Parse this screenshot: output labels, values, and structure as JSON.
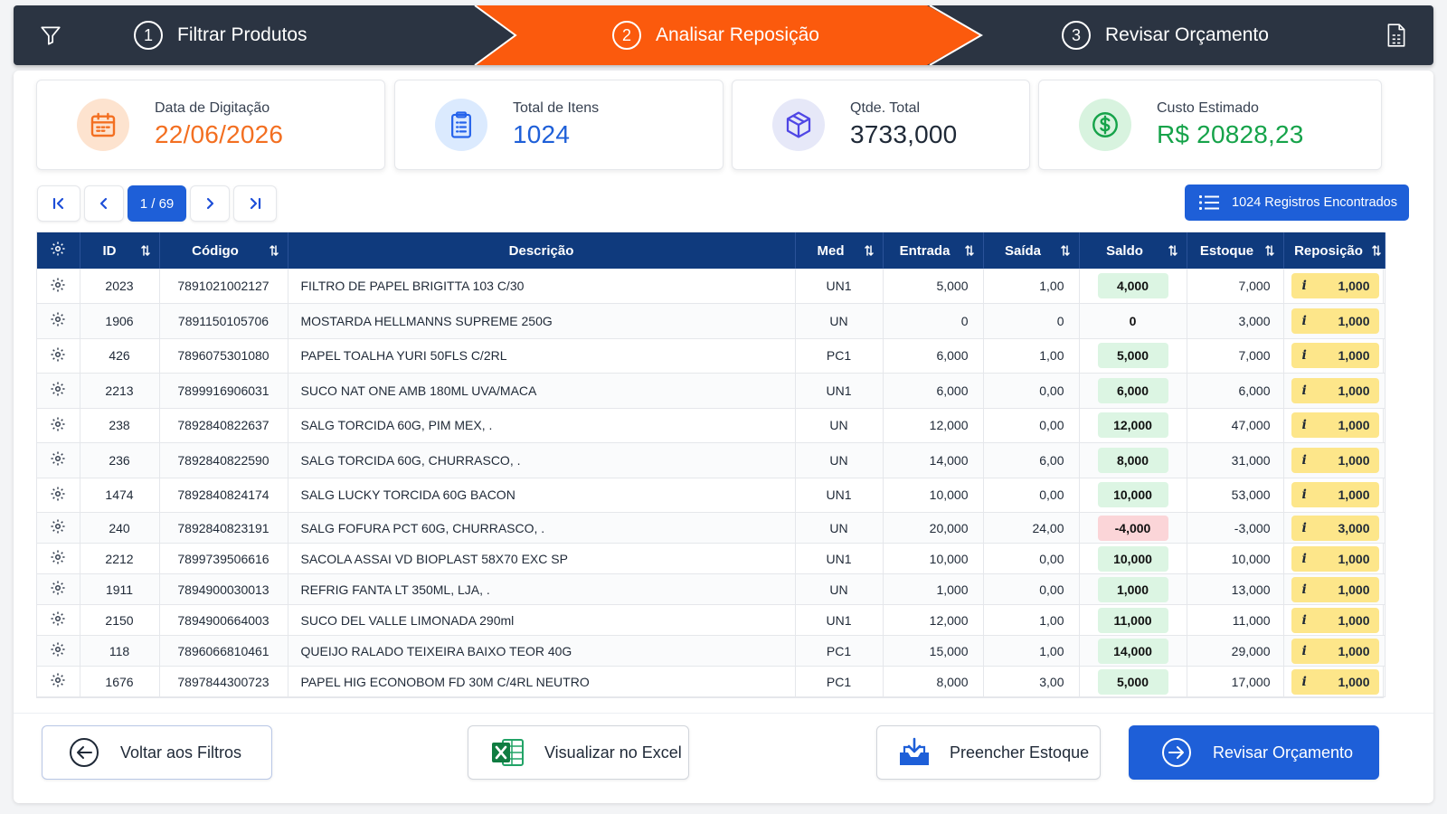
{
  "stepper": {
    "steps": [
      {
        "num": "1",
        "label": "Filtrar Produtos"
      },
      {
        "num": "2",
        "label": "Analisar Reposição"
      },
      {
        "num": "3",
        "label": "Revisar Orçamento"
      }
    ],
    "active_step": 2
  },
  "cards": {
    "date": {
      "label": "Data de Digitação",
      "value": "22/06/2026"
    },
    "items": {
      "label": "Total de Itens",
      "value": "1024"
    },
    "qty": {
      "label": "Qtde. Total",
      "value": "3733,000"
    },
    "cost": {
      "label": "Custo Estimado",
      "value": "R$ 20828,23"
    }
  },
  "pagination": {
    "current": "1 / 69"
  },
  "records_label": "1024 Registros Encontrados",
  "table": {
    "headers": {
      "id": "ID",
      "codigo": "Código",
      "descricao": "Descrição",
      "med": "Med",
      "entrada": "Entrada",
      "saida": "Saída",
      "saldo": "Saldo",
      "estoque": "Estoque",
      "reposicao": "Reposição"
    },
    "rows": [
      {
        "id": "2023",
        "codigo": "7891021002127",
        "descricao": "FILTRO DE PAPEL BRIGITTA 103 C/30",
        "med": "UN1",
        "entrada": "5,000",
        "saida": "1,00",
        "saldo": "4,000",
        "saldo_state": "pos",
        "estoque": "7,000",
        "rep": "1,000"
      },
      {
        "id": "1906",
        "codigo": "7891150105706",
        "descricao": "MOSTARDA HELLMANNS SUPREME 250G",
        "med": "UN",
        "entrada": "0",
        "saida": "0",
        "saldo": "0",
        "saldo_state": "zero",
        "estoque": "3,000",
        "rep": "1,000"
      },
      {
        "id": "426",
        "codigo": "7896075301080",
        "descricao": "PAPEL TOALHA YURI 50FLS C/2RL",
        "med": "PC1",
        "entrada": "6,000",
        "saida": "1,00",
        "saldo": "5,000",
        "saldo_state": "pos",
        "estoque": "7,000",
        "rep": "1,000"
      },
      {
        "id": "2213",
        "codigo": "7899916906031",
        "descricao": "SUCO NAT ONE AMB 180ML UVA/MACA",
        "med": "UN1",
        "entrada": "6,000",
        "saida": "0,00",
        "saldo": "6,000",
        "saldo_state": "pos",
        "estoque": "6,000",
        "rep": "1,000"
      },
      {
        "id": "238",
        "codigo": "7892840822637",
        "descricao": "SALG TORCIDA 60G, PIM MEX, .",
        "med": "UN",
        "entrada": "12,000",
        "saida": "0,00",
        "saldo": "12,000",
        "saldo_state": "pos",
        "estoque": "47,000",
        "rep": "1,000"
      },
      {
        "id": "236",
        "codigo": "7892840822590",
        "descricao": "SALG TORCIDA 60G, CHURRASCO, .",
        "med": "UN",
        "entrada": "14,000",
        "saida": "6,00",
        "saldo": "8,000",
        "saldo_state": "pos",
        "estoque": "31,000",
        "rep": "1,000"
      },
      {
        "id": "1474",
        "codigo": "7892840824174",
        "descricao": "SALG LUCKY TORCIDA 60G BACON",
        "med": "UN1",
        "entrada": "10,000",
        "saida": "0,00",
        "saldo": "10,000",
        "saldo_state": "pos",
        "estoque": "53,000",
        "rep": "1,000"
      },
      {
        "id": "240",
        "codigo": "7892840823191",
        "descricao": "SALG FOFURA PCT 60G, CHURRASCO, .",
        "med": "UN",
        "entrada": "20,000",
        "saida": "24,00",
        "saldo": "-4,000",
        "saldo_state": "neg",
        "estoque": "-3,000",
        "rep": "3,000"
      },
      {
        "id": "2212",
        "codigo": "7899739506616",
        "descricao": "SACOLA ASSAI VD BIOPLAST 58X70 EXC SP",
        "med": "UN1",
        "entrada": "10,000",
        "saida": "0,00",
        "saldo": "10,000",
        "saldo_state": "pos",
        "estoque": "10,000",
        "rep": "1,000"
      },
      {
        "id": "1911",
        "codigo": "7894900030013",
        "descricao": "REFRIG FANTA LT 350ML, LJA, .",
        "med": "UN",
        "entrada": "1,000",
        "saida": "0,00",
        "saldo": "1,000",
        "saldo_state": "pos",
        "estoque": "13,000",
        "rep": "1,000"
      },
      {
        "id": "2150",
        "codigo": "7894900664003",
        "descricao": "SUCO DEL VALLE LIMONADA 290ml",
        "med": "UN1",
        "entrada": "12,000",
        "saida": "1,00",
        "saldo": "11,000",
        "saldo_state": "pos",
        "estoque": "11,000",
        "rep": "1,000"
      },
      {
        "id": "118",
        "codigo": "7896066810461",
        "descricao": "QUEIJO RALADO TEIXEIRA BAIXO TEOR 40G",
        "med": "PC1",
        "entrada": "15,000",
        "saida": "1,00",
        "saldo": "14,000",
        "saldo_state": "pos",
        "estoque": "29,000",
        "rep": "1,000"
      },
      {
        "id": "1676",
        "codigo": "7897844300723",
        "descricao": "PAPEL HIG ECONOBOM FD 30M C/4RL NEUTRO",
        "med": "PC1",
        "entrada": "8,000",
        "saida": "3,00",
        "saldo": "5,000",
        "saldo_state": "pos",
        "estoque": "17,000",
        "rep": "1,000"
      }
    ]
  },
  "footer": {
    "back": "Voltar aos Filtros",
    "excel": "Visualizar no Excel",
    "fill": "Preencher Estoque",
    "review": "Revisar Orçamento"
  },
  "colors": {
    "accent": "#fb5a0d",
    "primary": "#1e5fd8",
    "header": "#0f3a7d",
    "dark": "#2b3442"
  }
}
